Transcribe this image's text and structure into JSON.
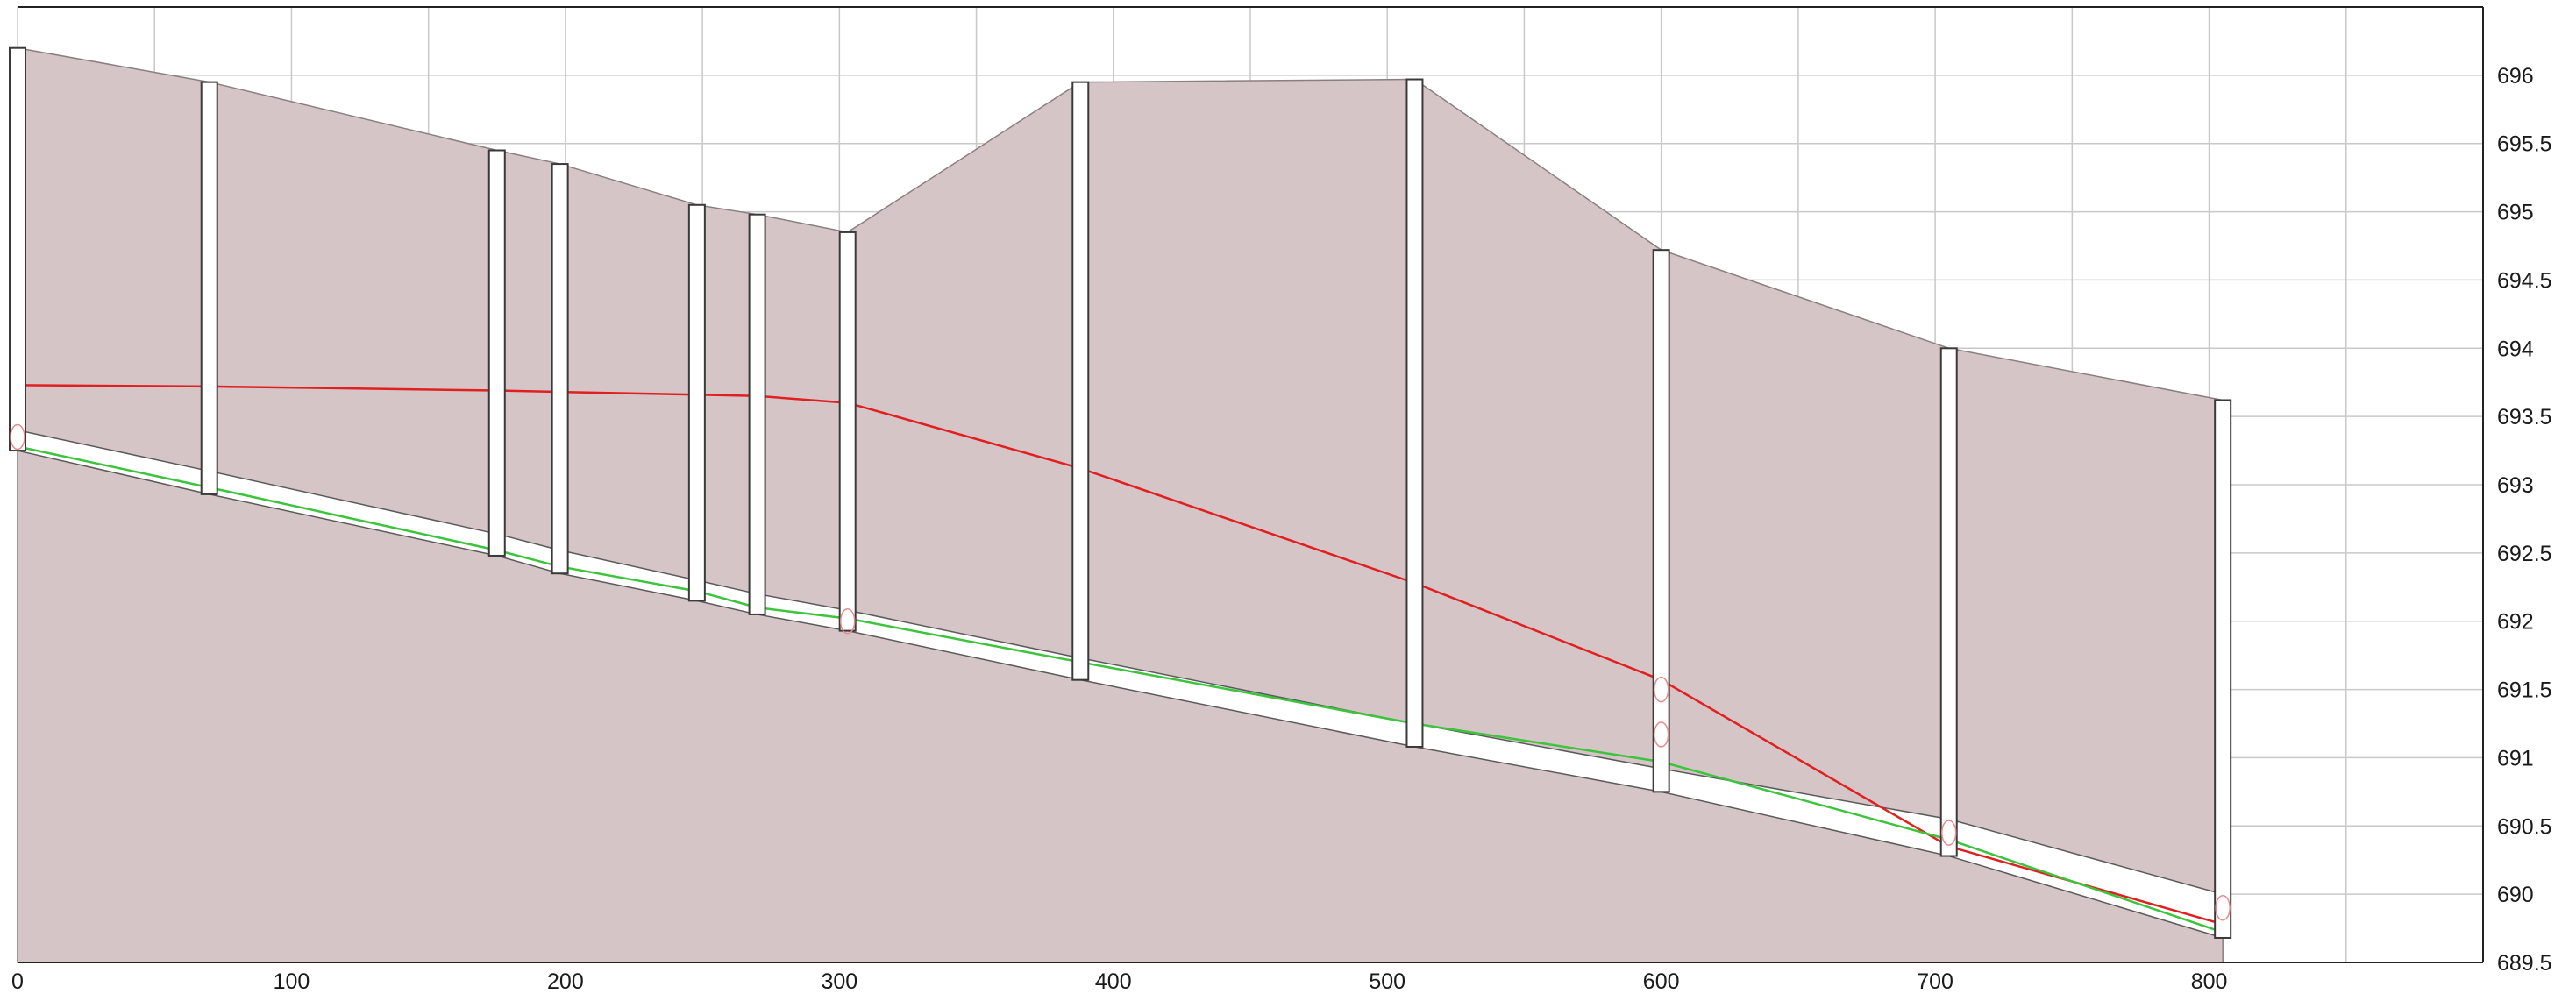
{
  "chart_data": {
    "type": "profile",
    "xlim": [
      0,
      900
    ],
    "ylim": [
      689.5,
      696.5
    ],
    "x_ticks": [
      0,
      100,
      200,
      300,
      400,
      500,
      600,
      700,
      800
    ],
    "y_ticks": [
      689.5,
      690,
      690.5,
      691,
      691.5,
      692,
      692.5,
      693,
      693.5,
      694,
      694.5,
      695,
      695.5,
      696
    ],
    "x_tick_labels": [
      "0",
      "100",
      "200",
      "300",
      "400",
      "500",
      "600",
      "700",
      "800"
    ],
    "y_tick_labels": [
      "689.5",
      "690",
      "690.5",
      "691",
      "691.5",
      "692",
      "692.5",
      "693",
      "693.5",
      "694",
      "694.5",
      "695",
      "695.5",
      "696"
    ],
    "grid": true,
    "y_axis_side": "right",
    "ground_profile": [
      [
        0,
        696.2
      ],
      [
        70,
        695.95
      ],
      [
        175,
        695.45
      ],
      [
        198,
        695.35
      ],
      [
        248,
        695.05
      ],
      [
        270,
        694.98
      ],
      [
        303,
        694.85
      ],
      [
        388,
        695.95
      ],
      [
        510,
        695.97
      ],
      [
        600,
        694.72
      ],
      [
        705,
        694.0
      ],
      [
        805,
        693.62
      ]
    ],
    "manholes": [
      {
        "x": 0,
        "rim": 696.2,
        "invert": 693.25
      },
      {
        "x": 70,
        "rim": 695.95,
        "invert": 692.93
      },
      {
        "x": 175,
        "rim": 695.45,
        "invert": 692.48
      },
      {
        "x": 198,
        "rim": 695.35,
        "invert": 692.35
      },
      {
        "x": 248,
        "rim": 695.05,
        "invert": 692.15
      },
      {
        "x": 270,
        "rim": 694.98,
        "invert": 692.05
      },
      {
        "x": 303,
        "rim": 694.85,
        "invert": 691.93
      },
      {
        "x": 388,
        "rim": 695.95,
        "invert": 691.57
      },
      {
        "x": 510,
        "rim": 695.97,
        "invert": 691.08
      },
      {
        "x": 600,
        "rim": 694.72,
        "invert": 690.75
      },
      {
        "x": 705,
        "rim": 694.0,
        "invert": 690.28
      },
      {
        "x": 805,
        "rim": 693.62,
        "invert": 689.68
      }
    ],
    "pipe_invert": [
      [
        0,
        693.25
      ],
      [
        70,
        692.93
      ],
      [
        175,
        692.48
      ],
      [
        198,
        692.35
      ],
      [
        248,
        692.15
      ],
      [
        270,
        692.05
      ],
      [
        303,
        691.93
      ],
      [
        388,
        691.57
      ],
      [
        510,
        691.08
      ],
      [
        600,
        690.75
      ],
      [
        705,
        690.28
      ],
      [
        805,
        689.68
      ]
    ],
    "pipe_crown": [
      [
        0,
        693.4
      ],
      [
        70,
        693.1
      ],
      [
        175,
        692.64
      ],
      [
        198,
        692.52
      ],
      [
        248,
        692.3
      ],
      [
        270,
        692.2
      ],
      [
        303,
        692.08
      ],
      [
        388,
        691.73
      ],
      [
        510,
        691.25
      ],
      [
        600,
        690.92
      ],
      [
        705,
        690.55
      ],
      [
        805,
        690.0
      ]
    ],
    "series": [
      {
        "color": "#e02020",
        "x": [
          0,
          70,
          175,
          198,
          248,
          270,
          303,
          388,
          510,
          600,
          705,
          805
        ],
        "y": [
          693.73,
          693.72,
          693.69,
          693.68,
          693.66,
          693.65,
          693.6,
          693.12,
          692.28,
          691.57,
          690.35,
          689.78
        ]
      },
      {
        "color": "#3cc43c",
        "x": [
          0,
          70,
          175,
          198,
          248,
          270,
          303,
          388,
          510,
          600,
          705,
          805
        ],
        "y": [
          693.28,
          692.98,
          692.52,
          692.4,
          692.22,
          692.1,
          692.02,
          691.7,
          691.25,
          690.97,
          690.4,
          689.72
        ]
      }
    ],
    "markers": [
      {
        "x": 0,
        "y": 693.35
      },
      {
        "x": 303,
        "y": 692.0
      },
      {
        "x": 600,
        "y": 691.5
      },
      {
        "x": 600,
        "y": 691.17
      },
      {
        "x": 705,
        "y": 690.45
      },
      {
        "x": 805,
        "y": 689.9
      }
    ]
  },
  "colors": {
    "ground_fill": "#d6c5c7",
    "grid": "#c9c9c9",
    "hgl": "#e02020",
    "egl": "#3cc43c",
    "marker": "#e88a8a"
  }
}
